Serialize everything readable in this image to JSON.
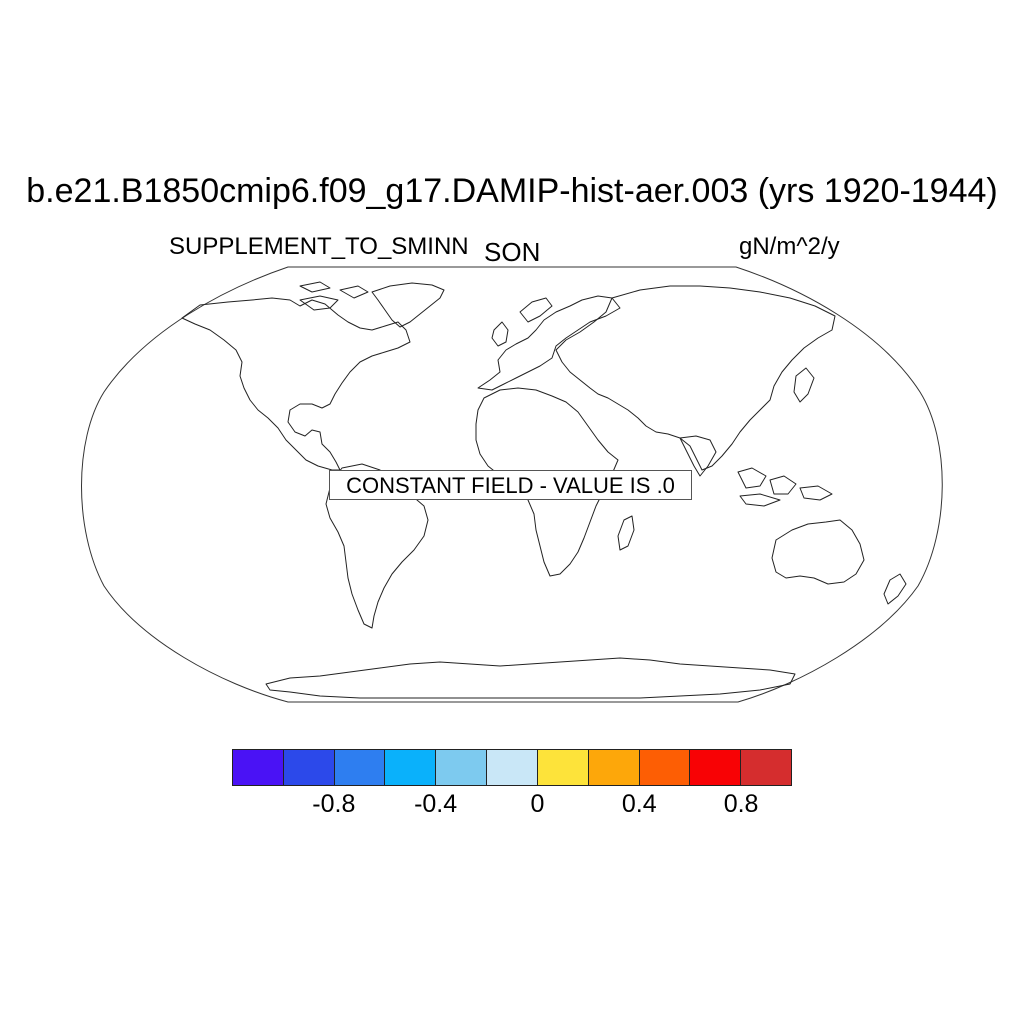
{
  "title": "b.e21.B1850cmip6.f09_g17.DAMIP-hist-aer.003 (yrs 1920-1944)",
  "left_subtitle": "SUPPLEMENT_TO_SMINN",
  "center_subtitle": "SON",
  "right_subtitle": "gN/m^2/y",
  "notice": "CONSTANT FIELD - VALUE IS .0",
  "map": {
    "projection": "Robinson",
    "coastlines": true
  },
  "colorbar": {
    "colors": [
      "#4a12f5",
      "#2c49ea",
      "#2e7ef0",
      "#0ab1fb",
      "#7dcaef",
      "#c9e7f7",
      "#fde33a",
      "#fda70a",
      "#fd5e04",
      "#f80205",
      "#d52d2e"
    ],
    "labels": [
      "-0.8",
      "-0.4",
      "0",
      "0.4",
      "0.8"
    ],
    "label_boundaries": [
      1,
      3,
      5,
      7,
      9
    ]
  }
}
